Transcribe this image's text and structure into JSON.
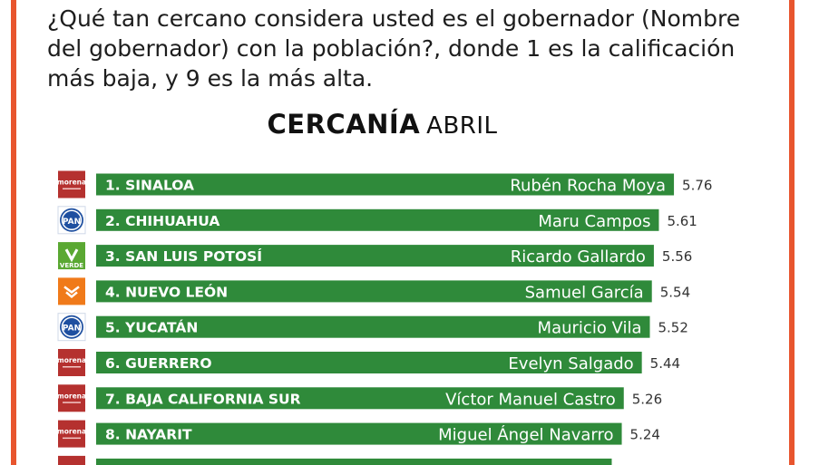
{
  "question": "¿Qué tan cercano considera usted es el gobernador  (Nombre del gobernador) con la población?, donde 1 es la calificación más baja, y 9 es la más alta.",
  "title": {
    "main": "CERCANÍA",
    "sub": "ABRIL"
  },
  "colors": {
    "bar": "#2f8a3a",
    "frame": "#e8552e",
    "morena": "#b5312f",
    "pan": "#1e4fa0",
    "verde": "#5aa832",
    "mc": "#f07a1a"
  },
  "chart_data": {
    "type": "bar",
    "orientation": "horizontal",
    "title": "CERCANÍA ABRIL",
    "xlim": [
      0,
      9
    ],
    "categories": [
      "1. SINALOA",
      "2. CHIHUAHUA",
      "3. SAN LUIS POTOSÍ",
      "4. NUEVO LEÓN",
      "5. YUCATÁN",
      "6. GUERRERO",
      "7. BAJA CALIFORNIA SUR",
      "8. NAYARIT"
    ],
    "governors": [
      "Rubén Rocha Moya",
      "Maru Campos",
      "Ricardo Gallardo",
      "Samuel García",
      "Mauricio Vila",
      "Evelyn Salgado",
      "Víctor Manuel Castro",
      "Miguel Ángel Navarro"
    ],
    "values": [
      5.76,
      5.61,
      5.56,
      5.54,
      5.52,
      5.44,
      5.26,
      5.24
    ],
    "value_labels": [
      "5.76",
      "5.61",
      "5.56",
      "5.54",
      "5.52",
      "5.44",
      "5.26",
      "5.24"
    ],
    "parties": [
      "morena",
      "pan",
      "verde",
      "mc",
      "pan",
      "morena",
      "morena",
      "morena"
    ]
  },
  "logos": {
    "morena": "morena",
    "pan": "PAN",
    "verde": "VERDE"
  }
}
